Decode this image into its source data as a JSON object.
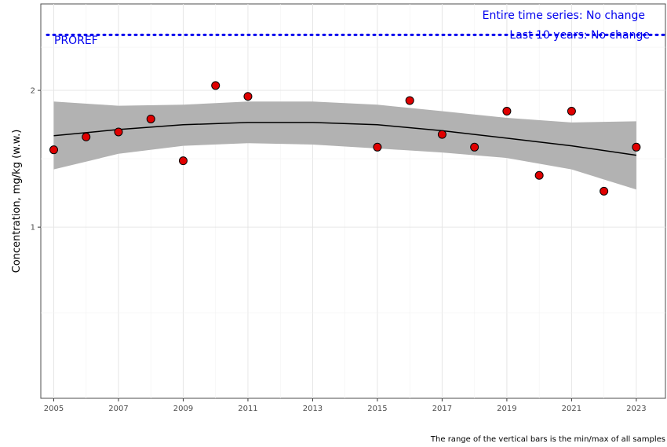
{
  "chart_data": {
    "type": "scatter",
    "title": "",
    "xlabel": "",
    "ylabel": "Concentration, mg/kg (w.w.)",
    "y_scale": "log",
    "xlim": [
      2004.6,
      2023.9
    ],
    "ylim": [
      0.42,
      3.1
    ],
    "x_ticks": [
      2005,
      2007,
      2009,
      2011,
      2013,
      2015,
      2017,
      2019,
      2021,
      2023
    ],
    "x_tick_labels": [
      "2005",
      "2007",
      "2009",
      "2011",
      "2013",
      "2015",
      "2017",
      "2019",
      "2021",
      "2023"
    ],
    "y_ticks": [
      1,
      2
    ],
    "y_tick_labels": [
      "1",
      "2"
    ],
    "grid": true,
    "series": [
      {
        "type": "scatter",
        "color": "#e00000",
        "points": [
          {
            "x": 2005,
            "y": 1.48
          },
          {
            "x": 2006,
            "y": 1.58
          },
          {
            "x": 2007,
            "y": 1.62
          },
          {
            "x": 2008,
            "y": 1.73
          },
          {
            "x": 2009,
            "y": 1.4
          },
          {
            "x": 2010,
            "y": 2.05
          },
          {
            "x": 2011,
            "y": 1.94
          },
          {
            "x": 2015,
            "y": 1.5
          },
          {
            "x": 2016,
            "y": 1.9
          },
          {
            "x": 2017,
            "y": 1.6
          },
          {
            "x": 2018,
            "y": 1.5
          },
          {
            "x": 2019,
            "y": 1.8
          },
          {
            "x": 2020,
            "y": 1.3
          },
          {
            "x": 2021,
            "y": 1.8
          },
          {
            "x": 2022,
            "y": 1.2
          },
          {
            "x": 2023,
            "y": 1.5
          }
        ]
      },
      {
        "type": "line",
        "color": "#000000",
        "points": [
          {
            "x": 2005,
            "y": 1.59
          },
          {
            "x": 2007,
            "y": 1.64
          },
          {
            "x": 2009,
            "y": 1.68
          },
          {
            "x": 2011,
            "y": 1.7
          },
          {
            "x": 2013,
            "y": 1.7
          },
          {
            "x": 2015,
            "y": 1.68
          },
          {
            "x": 2017,
            "y": 1.63
          },
          {
            "x": 2019,
            "y": 1.57
          },
          {
            "x": 2021,
            "y": 1.51
          },
          {
            "x": 2023,
            "y": 1.44
          }
        ]
      }
    ],
    "confidence_band": {
      "color": "#b2b2b2",
      "points": [
        {
          "x": 2005,
          "lower": 1.34,
          "upper": 1.89
        },
        {
          "x": 2007,
          "lower": 1.45,
          "upper": 1.85
        },
        {
          "x": 2009,
          "lower": 1.51,
          "upper": 1.86
        },
        {
          "x": 2011,
          "lower": 1.53,
          "upper": 1.89
        },
        {
          "x": 2013,
          "lower": 1.52,
          "upper": 1.89
        },
        {
          "x": 2015,
          "lower": 1.49,
          "upper": 1.86
        },
        {
          "x": 2017,
          "lower": 1.46,
          "upper": 1.8
        },
        {
          "x": 2019,
          "lower": 1.42,
          "upper": 1.74
        },
        {
          "x": 2021,
          "lower": 1.34,
          "upper": 1.7
        },
        {
          "x": 2023,
          "lower": 1.21,
          "upper": 1.71
        }
      ]
    },
    "reference_line": {
      "label": "PROREF",
      "y": 2.65,
      "color": "#0000ee",
      "style": "dotted"
    },
    "annotations": [
      {
        "text": "Entire time series: No change",
        "color": "#0000ee",
        "placement": "top-right"
      },
      {
        "text": "Last 10 years: No change",
        "color": "#0000ee",
        "placement": "top-right"
      }
    ],
    "caption": "The range of the vertical bars is the min/max of all samples"
  }
}
